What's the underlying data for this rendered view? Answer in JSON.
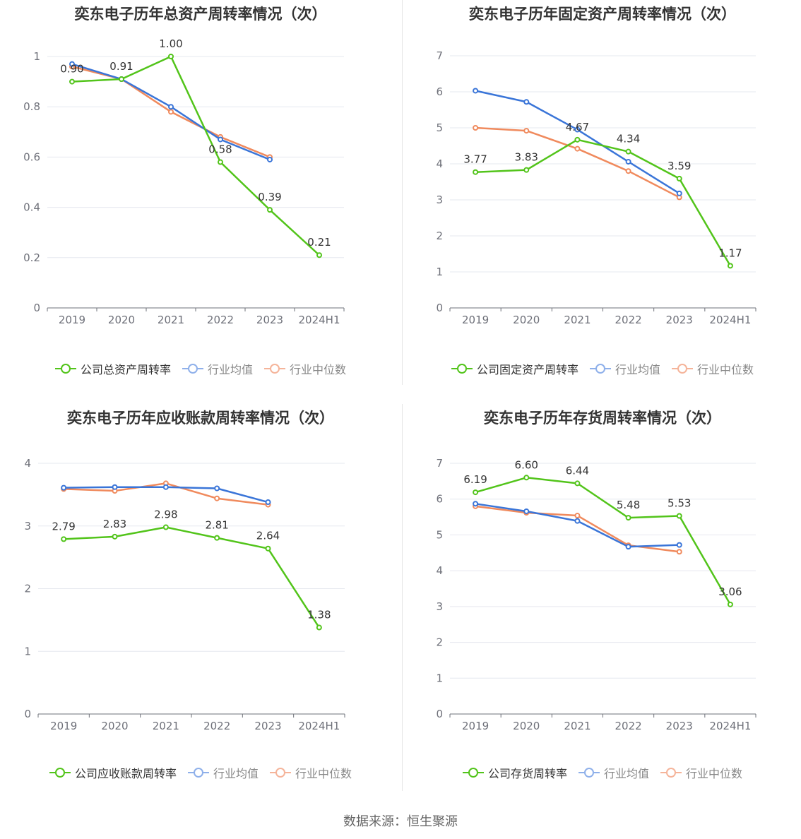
{
  "source": "数据来源：恒生聚源",
  "chart_data": [
    {
      "type": "line",
      "title": "奕东电子历年总资产周转率情况（次）",
      "categories": [
        "2019",
        "2020",
        "2021",
        "2022",
        "2023",
        "2024H1"
      ],
      "ylim": [
        0,
        1
      ],
      "yticks": [
        "0",
        "0.2",
        "0.4",
        "0.6",
        "0.8",
        "1"
      ],
      "ytick_values": [
        0,
        0.2,
        0.4,
        0.6,
        0.8,
        1
      ],
      "series": [
        {
          "name": "公司总资产周转率",
          "color": "#52c41a",
          "values": [
            0.9,
            0.91,
            1.0,
            0.58,
            0.39,
            0.21
          ],
          "labels": [
            "0.90",
            "0.91",
            "1.00",
            "0.58",
            "0.39",
            "0.21"
          ]
        },
        {
          "name": "行业均值",
          "color": "#3a75d8",
          "values": [
            0.97,
            0.91,
            0.8,
            0.67,
            0.59,
            null
          ]
        },
        {
          "name": "行业中位数",
          "color": "#f08a5d",
          "values": [
            0.96,
            0.91,
            0.78,
            0.68,
            0.6,
            null
          ]
        }
      ]
    },
    {
      "type": "line",
      "title": "奕东电子历年固定资产周转率情况（次）",
      "categories": [
        "2019",
        "2020",
        "2021",
        "2022",
        "2023",
        "2024H1"
      ],
      "ylim": [
        0,
        7
      ],
      "yticks": [
        "0",
        "1",
        "2",
        "3",
        "4",
        "5",
        "6",
        "7"
      ],
      "ytick_values": [
        0,
        1,
        2,
        3,
        4,
        5,
        6,
        7
      ],
      "series": [
        {
          "name": "公司固定资产周转率",
          "color": "#52c41a",
          "values": [
            3.77,
            3.83,
            4.67,
            4.34,
            3.59,
            1.17
          ],
          "labels": [
            "3.77",
            "3.83",
            "4.67",
            "4.34",
            "3.59",
            "1.17"
          ]
        },
        {
          "name": "行业均值",
          "color": "#3a75d8",
          "values": [
            6.03,
            5.72,
            4.95,
            4.06,
            3.18,
            null
          ]
        },
        {
          "name": "行业中位数",
          "color": "#f08a5d",
          "values": [
            5.0,
            4.92,
            4.42,
            3.8,
            3.07,
            null
          ]
        }
      ]
    },
    {
      "type": "line",
      "title": "奕东电子历年应收账款周转率情况（次）",
      "categories": [
        "2019",
        "2020",
        "2021",
        "2022",
        "2023",
        "2024H1"
      ],
      "ylim": [
        0,
        4
      ],
      "yticks": [
        "0",
        "1",
        "2",
        "3",
        "4"
      ],
      "ytick_values": [
        0,
        1,
        2,
        3,
        4
      ],
      "series": [
        {
          "name": "公司应收账款周转率",
          "color": "#52c41a",
          "values": [
            2.79,
            2.83,
            2.98,
            2.81,
            2.64,
            1.38
          ],
          "labels": [
            "2.79",
            "2.83",
            "2.98",
            "2.81",
            "2.64",
            "1.38"
          ]
        },
        {
          "name": "行业均值",
          "color": "#3a75d8",
          "values": [
            3.61,
            3.62,
            3.62,
            3.6,
            3.38,
            null
          ]
        },
        {
          "name": "行业中位数",
          "color": "#f08a5d",
          "values": [
            3.59,
            3.56,
            3.68,
            3.44,
            3.34,
            null
          ]
        }
      ]
    },
    {
      "type": "line",
      "title": "奕东电子历年存货周转率情况（次）",
      "categories": [
        "2019",
        "2020",
        "2021",
        "2022",
        "2023",
        "2024H1"
      ],
      "ylim": [
        0,
        7
      ],
      "yticks": [
        "0",
        "1",
        "2",
        "3",
        "4",
        "5",
        "6",
        "7"
      ],
      "ytick_values": [
        0,
        1,
        2,
        3,
        4,
        5,
        6,
        7
      ],
      "series": [
        {
          "name": "公司存货周转率",
          "color": "#52c41a",
          "values": [
            6.19,
            6.6,
            6.44,
            5.48,
            5.53,
            3.06
          ],
          "labels": [
            "6.19",
            "6.60",
            "6.44",
            "5.48",
            "5.53",
            "3.06"
          ]
        },
        {
          "name": "行业均值",
          "color": "#3a75d8",
          "values": [
            5.87,
            5.66,
            5.39,
            4.67,
            4.72,
            null
          ]
        },
        {
          "name": "行业中位数",
          "color": "#f08a5d",
          "values": [
            5.8,
            5.62,
            5.54,
            4.71,
            4.53,
            null
          ]
        }
      ]
    }
  ]
}
